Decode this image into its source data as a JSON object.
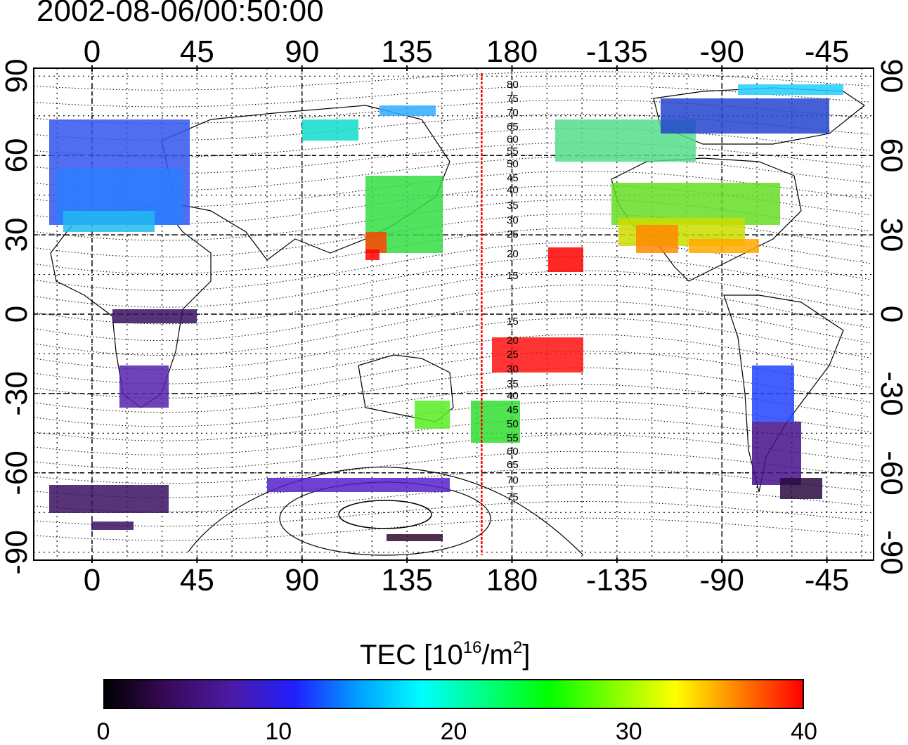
{
  "title": "2002-08-06/00:50:00",
  "lon_ticks": [
    "0",
    "45",
    "90",
    "135",
    "180",
    "-135",
    "-90",
    "-45"
  ],
  "lat_ticks": [
    "90",
    "60",
    "30",
    "0",
    "-30",
    "-60",
    "-90"
  ],
  "colorbar": {
    "label_main": "TEC  [10",
    "label_sup1": "16",
    "label_mid": "/m",
    "label_sup2": "2",
    "label_end": "]",
    "ticks": [
      "0",
      "10",
      "20",
      "30",
      "40"
    ],
    "min": 0,
    "max": 40,
    "gradient_colors": [
      "#000000",
      "#3a0a5a",
      "#4b1aa6",
      "#2020ff",
      "#00a0ff",
      "#00ffff",
      "#00ff80",
      "#00ff00",
      "#80ff00",
      "#ffff00",
      "#ff8000",
      "#ff0000"
    ]
  },
  "map": {
    "lon_min": -25,
    "lon_max": 335,
    "lat_min": -93,
    "lat_max": 93,
    "terminator_lon": 167,
    "terminator_color": "#ff0000",
    "contour_labels_north": [
      "80",
      "75",
      "70",
      "65",
      "60",
      "55",
      "50",
      "45",
      "40",
      "35",
      "30",
      "25",
      "20",
      "15"
    ],
    "contour_labels_south": [
      "15",
      "20",
      "25",
      "30",
      "35",
      "40",
      "45",
      "50",
      "55",
      "60",
      "65",
      "70",
      "75"
    ]
  }
}
